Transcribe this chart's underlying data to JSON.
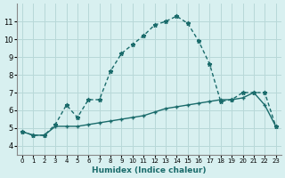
{
  "line1_x": [
    0,
    1,
    2,
    3,
    4,
    5,
    6,
    7,
    8,
    9,
    10,
    11,
    12,
    13,
    14,
    15,
    16,
    17,
    18,
    19,
    20,
    21,
    22,
    23
  ],
  "line1_y": [
    4.8,
    4.6,
    4.6,
    5.2,
    6.3,
    5.6,
    6.6,
    6.6,
    8.2,
    9.2,
    9.7,
    10.2,
    10.8,
    11.0,
    11.3,
    10.9,
    9.9,
    8.6,
    6.5,
    6.6,
    7.0,
    7.0,
    7.0,
    5.1
  ],
  "line2_x": [
    0,
    1,
    2,
    3,
    4,
    5,
    6,
    7,
    8,
    9,
    10,
    11,
    12,
    13,
    14,
    15,
    16,
    17,
    18,
    19,
    20,
    21,
    22,
    23
  ],
  "line2_y": [
    4.8,
    4.6,
    4.6,
    5.1,
    5.1,
    5.1,
    5.2,
    5.3,
    5.4,
    5.5,
    5.6,
    5.7,
    5.9,
    6.1,
    6.2,
    6.3,
    6.4,
    6.5,
    6.6,
    6.6,
    6.7,
    7.0,
    6.3,
    5.1
  ],
  "line_color": "#1a6b6b",
  "bg_color": "#d8f0f0",
  "grid_color": "#b8d8d8",
  "xlabel": "Humidex (Indice chaleur)",
  "ylim": [
    3.5,
    12.0
  ],
  "xlim": [
    -0.5,
    23.5
  ],
  "yticks": [
    4,
    5,
    6,
    7,
    8,
    9,
    10,
    11
  ],
  "xticks": [
    0,
    1,
    2,
    3,
    4,
    5,
    6,
    7,
    8,
    9,
    10,
    11,
    12,
    13,
    14,
    15,
    16,
    17,
    18,
    19,
    20,
    21,
    22,
    23
  ]
}
